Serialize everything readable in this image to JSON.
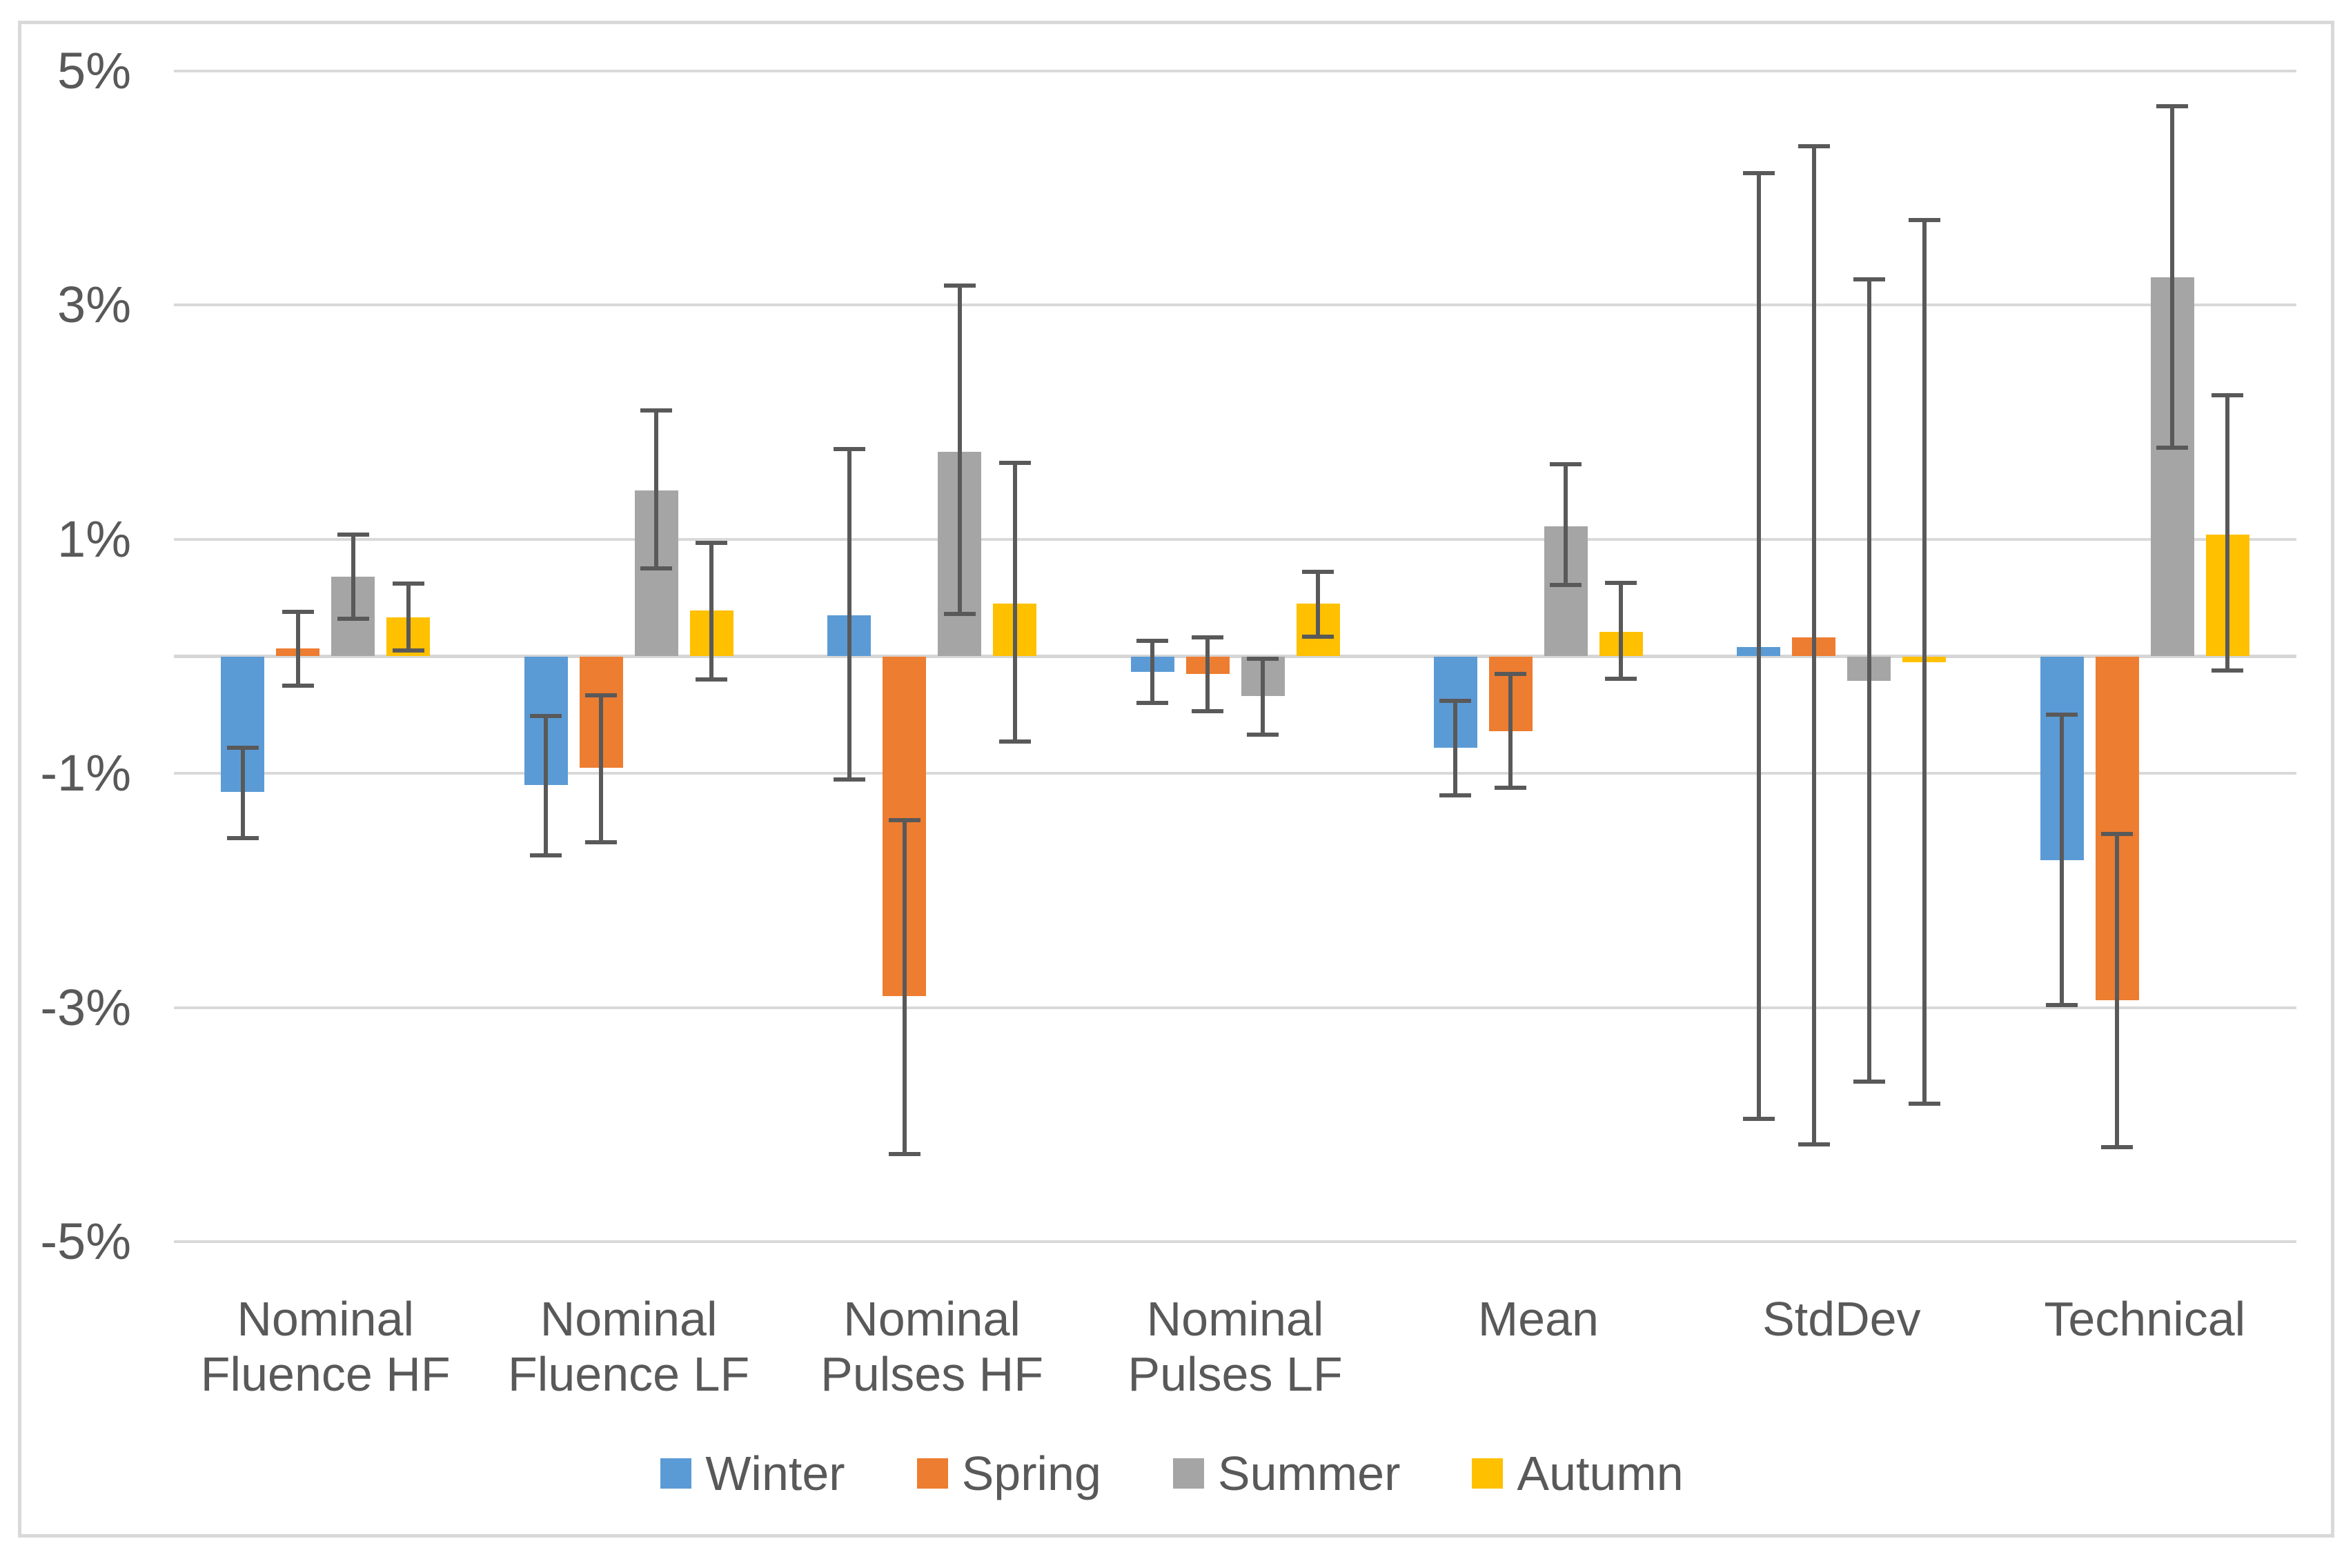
{
  "chart_data": {
    "type": "bar",
    "title": "",
    "unit": "%",
    "grid": true,
    "error_bars": true,
    "legend_position": "bottom",
    "categories": [
      "Nominal Fluence HF",
      "Nominal Fluence LF",
      "Nominal Pulses HF",
      "Nominal Pulses LF",
      "Mean",
      "StdDev",
      "Technical"
    ],
    "category_label_lines": [
      [
        "Nominal",
        "Fluence HF"
      ],
      [
        "Nominal",
        "Fluence LF"
      ],
      [
        "Nominal",
        "Pulses HF"
      ],
      [
        "Nominal",
        "Pulses LF"
      ],
      [
        "Mean"
      ],
      [
        "StdDev"
      ],
      [
        "Technical"
      ]
    ],
    "y_axis": {
      "min": -5,
      "max": 5,
      "ticks": [
        "5%",
        "3%",
        "1%",
        "-1%",
        "-3%",
        "-5%"
      ],
      "tick_values": [
        5,
        3,
        1,
        -1,
        -3,
        -5
      ]
    },
    "series": [
      {
        "name": "Winter",
        "color": "#5B9BD5",
        "values": [
          -1.16,
          -1.1,
          0.35,
          -0.13,
          -0.78,
          0.08,
          -1.74
        ],
        "error_low": [
          -1.55,
          -1.7,
          -1.05,
          -0.4,
          -1.19,
          -3.95,
          -2.98
        ],
        "error_high": [
          -0.78,
          -0.51,
          1.77,
          0.13,
          -0.38,
          4.13,
          -0.5
        ]
      },
      {
        "name": "Spring",
        "color": "#ED7D31",
        "values": [
          0.07,
          -0.95,
          -2.9,
          -0.15,
          -0.64,
          0.16,
          -2.94
        ],
        "error_low": [
          -0.25,
          -1.59,
          -4.25,
          -0.47,
          -1.12,
          -4.17,
          -4.19
        ],
        "error_high": [
          0.38,
          -0.33,
          -1.4,
          0.16,
          -0.15,
          4.36,
          -1.52
        ]
      },
      {
        "name": "Summer",
        "color": "#A5A5A5",
        "values": [
          0.68,
          1.42,
          1.75,
          -0.34,
          1.11,
          -0.21,
          3.24
        ],
        "error_low": [
          0.32,
          0.75,
          0.36,
          -0.67,
          0.61,
          -3.63,
          1.78
        ],
        "error_high": [
          1.04,
          2.1,
          3.17,
          -0.02,
          1.64,
          3.22,
          4.7
        ]
      },
      {
        "name": "Autumn",
        "color": "#FFC000",
        "values": [
          0.33,
          0.39,
          0.45,
          0.45,
          0.21,
          -0.05,
          1.04
        ],
        "error_low": [
          0.05,
          -0.2,
          -0.73,
          0.17,
          -0.19,
          -3.82,
          -0.12
        ],
        "error_high": [
          0.62,
          0.97,
          1.65,
          0.72,
          0.63,
          3.73,
          2.23
        ]
      }
    ]
  },
  "colors": {
    "background": "#FFFFFF",
    "text": "#595959",
    "gridline": "#D9D9D9",
    "zero_line": "#D6D6D6",
    "error_bar": "#595959",
    "frame_border": "#D9D9D9"
  }
}
